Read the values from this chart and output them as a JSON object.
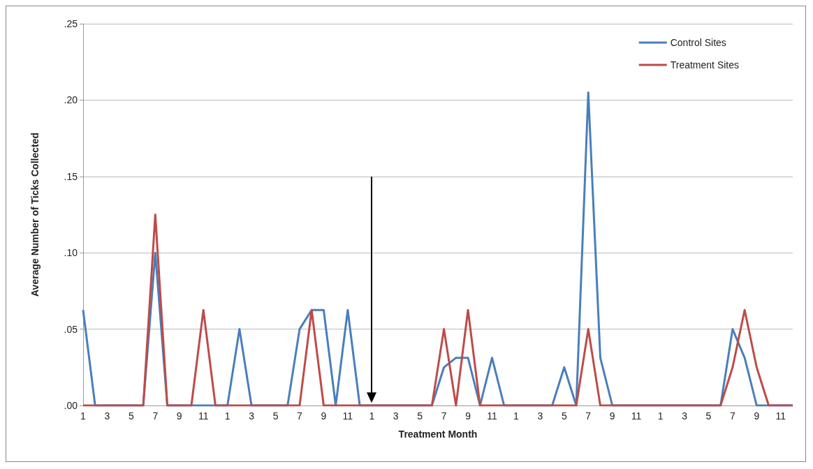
{
  "chart_data": {
    "type": "line",
    "xlabel": "Treatment Month",
    "ylabel": "Average Number of Ticks Collected",
    "categories": [
      "1",
      null,
      "3",
      null,
      "5",
      null,
      "7",
      null,
      "9",
      null,
      "11",
      null,
      "1",
      null,
      "3",
      null,
      "5",
      null,
      "7",
      null,
      "9",
      null,
      "11",
      null,
      "1",
      null,
      "3",
      null,
      "5",
      null,
      "7",
      null,
      "9",
      null,
      "11",
      null,
      "1",
      null,
      "3",
      null,
      "5",
      null,
      "7",
      null,
      "9",
      null,
      "11",
      null,
      "1",
      null,
      "3",
      null,
      "5",
      null,
      "7",
      null,
      "9",
      null,
      "11",
      null
    ],
    "series": [
      {
        "name": "Control Sites",
        "color": "#4a7ebb",
        "values": [
          0.0625,
          0,
          0,
          0,
          0,
          0,
          0.1,
          0,
          0,
          0,
          0,
          0,
          0,
          0.05,
          0,
          0,
          0,
          0,
          0.05,
          0.0625,
          0.0625,
          0,
          0.0625,
          0,
          0,
          0,
          0,
          0,
          0,
          0,
          0.025,
          0.03125,
          0.03125,
          0,
          0.03125,
          0,
          0,
          0,
          0,
          0,
          0.025,
          0,
          0.205,
          0.03125,
          0,
          0,
          0,
          0,
          0,
          0,
          0,
          0,
          0,
          0,
          0.05,
          0.03125,
          0,
          0,
          0,
          0
        ]
      },
      {
        "name": "Treatment Sites",
        "color": "#be4b48",
        "values": [
          0,
          0,
          0,
          0,
          0,
          0,
          0.125,
          0,
          0,
          0,
          0.0625,
          0,
          0,
          0,
          0,
          0,
          0,
          0,
          0,
          0.0625,
          0,
          0,
          0,
          0,
          0,
          0,
          0,
          0,
          0,
          0,
          0.05,
          0,
          0.0625,
          0,
          0,
          0,
          0,
          0,
          0,
          0,
          0,
          0,
          0.05,
          0,
          0,
          0,
          0,
          0,
          0,
          0,
          0,
          0,
          0,
          0,
          0.025,
          0.0625,
          0.025,
          0,
          0,
          0
        ]
      }
    ],
    "ylim": [
      0,
      0.25
    ],
    "yticks": [
      {
        "value": 0,
        "label": ".00"
      },
      {
        "value": 0.05,
        "label": ".05"
      },
      {
        "value": 0.1,
        "label": ".10"
      },
      {
        "value": 0.15,
        "label": ".15"
      },
      {
        "value": 0.2,
        "label": ".20"
      },
      {
        "value": 0.25,
        "label": ".25"
      }
    ],
    "grid": "y",
    "legend": "top right",
    "marker": "none",
    "line_style": "solid"
  }
}
